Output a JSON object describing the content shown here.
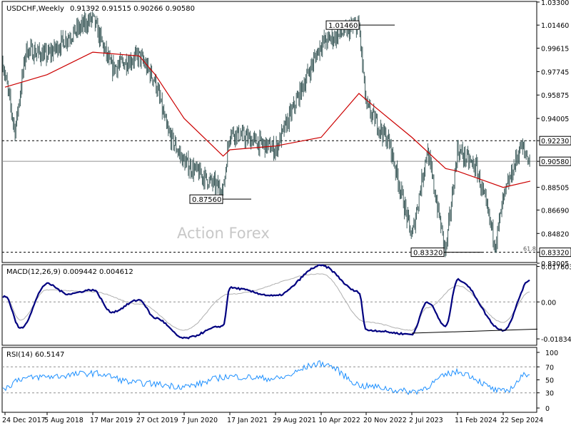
{
  "chart_data": [
    {
      "type": "candlestick",
      "panel": "price",
      "symbol_label": "USDCHF,Weekly",
      "ohlc_label": "0.91392 0.91515 0.90266 0.90580",
      "watermark": "Action Forex",
      "ylim": [
        0.825,
        1.0335
      ],
      "y_ticks": [
        "1.03300",
        "1.01460",
        "0.99615",
        "0.97745",
        "0.95875",
        "0.94005",
        "0.92230",
        "0.90580",
        "0.88505",
        "0.86690",
        "0.84820",
        "0.83320",
        "0.83005"
      ],
      "annotations": [
        {
          "label": "1.01460",
          "value": 1.0146
        },
        {
          "label": "0.87560",
          "value": 0.8756
        },
        {
          "label": "0.83320",
          "value": 0.8332
        }
      ],
      "horizontal_lines": [
        {
          "value": 0.9223,
          "label": "0.92230",
          "style": "dashed"
        },
        {
          "value": 0.9058,
          "label": "0.90580",
          "style": "solid"
        },
        {
          "value": 0.8332,
          "label": "0.83320",
          "style": "dashed"
        }
      ],
      "fib_label": "61.8",
      "close_path": [
        {
          "x": "24 Dec 2017",
          "y": 0.975
        },
        {
          "x": "Feb 2018",
          "y": 0.93
        },
        {
          "x": "Apr 2018",
          "y": 0.995
        },
        {
          "x": "5 Aug 2018",
          "y": 0.99
        },
        {
          "x": "Nov 2018",
          "y": 1.005
        },
        {
          "x": "17 Mar 2019",
          "y": 1.02
        },
        {
          "x": "Jun 2019",
          "y": 0.98
        },
        {
          "x": "27 Oct 2019",
          "y": 0.99
        },
        {
          "x": "Jan 2020",
          "y": 0.97
        },
        {
          "x": "Mar 2020",
          "y": 0.93
        },
        {
          "x": "7 Jun 2020",
          "y": 0.905
        },
        {
          "x": "Dec 2020",
          "y": 0.882
        },
        {
          "x": "17 Jan 2021",
          "y": 0.93
        },
        {
          "x": "29 Aug 2021",
          "y": 0.915
        },
        {
          "x": "10 Apr 2022",
          "y": 1.0
        },
        {
          "x": "Oct 2022",
          "y": 1.0146
        },
        {
          "x": "20 Nov 2022",
          "y": 0.95
        },
        {
          "x": "Mar 2023",
          "y": 0.92
        },
        {
          "x": "2 Jul 2023",
          "y": 0.845
        },
        {
          "x": "Sep 2023",
          "y": 0.915
        },
        {
          "x": "Dec 2023",
          "y": 0.8332
        },
        {
          "x": "11 Feb 2024",
          "y": 0.915
        },
        {
          "x": "May 2024",
          "y": 0.9
        },
        {
          "x": "Aug 2024",
          "y": 0.84
        },
        {
          "x": "22 Sep 2024",
          "y": 0.875
        },
        {
          "x": "Nov 2024",
          "y": 0.918
        },
        {
          "x": "Dec 2024",
          "y": 0.9058
        }
      ],
      "ma_path": [
        {
          "x": "24 Dec 2017",
          "y": 0.965
        },
        {
          "x": "5 Aug 2018",
          "y": 0.975
        },
        {
          "x": "17 Mar 2019",
          "y": 0.993
        },
        {
          "x": "27 Oct 2019",
          "y": 0.99
        },
        {
          "x": "Jan 2020",
          "y": 0.975
        },
        {
          "x": "7 Jun 2020",
          "y": 0.94
        },
        {
          "x": "Dec 2020",
          "y": 0.91
        },
        {
          "x": "17 Jan 2021",
          "y": 0.915
        },
        {
          "x": "29 Aug 2021",
          "y": 0.918
        },
        {
          "x": "10 Apr 2022",
          "y": 0.925
        },
        {
          "x": "Oct 2022",
          "y": 0.96
        },
        {
          "x": "20 Nov 2022",
          "y": 0.955
        },
        {
          "x": "2 Jul 2023",
          "y": 0.925
        },
        {
          "x": "Dec 2023",
          "y": 0.9
        },
        {
          "x": "11 Feb 2024",
          "y": 0.898
        },
        {
          "x": "22 Sep 2024",
          "y": 0.885
        },
        {
          "x": "Dec 2024",
          "y": 0.89
        }
      ]
    },
    {
      "type": "line",
      "panel": "macd",
      "label": "MACD(12,26,9) 0.009442 0.004612",
      "ylim": [
        -0.0215,
        0.0185
      ],
      "y_ticks": [
        "0.017603",
        "0.00",
        "-0.01834"
      ],
      "series": [
        {
          "name": "MACD",
          "points": [
            {
              "x": "24 Dec 2017",
              "y": 0.003
            },
            {
              "x": "Mar 2018",
              "y": -0.013
            },
            {
              "x": "5 Aug 2018",
              "y": 0.009
            },
            {
              "x": "Nov 2018",
              "y": 0.004
            },
            {
              "x": "17 Mar 2019",
              "y": 0.006
            },
            {
              "x": "Jun 2019",
              "y": -0.005
            },
            {
              "x": "27 Oct 2019",
              "y": 0.001
            },
            {
              "x": "Jan 2020",
              "y": -0.008
            },
            {
              "x": "7 Jun 2020",
              "y": -0.018
            },
            {
              "x": "Dec 2020",
              "y": -0.012
            },
            {
              "x": "17 Jan 2021",
              "y": 0.007
            },
            {
              "x": "29 Aug 2021",
              "y": 0.003
            },
            {
              "x": "10 Apr 2022",
              "y": 0.018
            },
            {
              "x": "Oct 2022",
              "y": 0.005
            },
            {
              "x": "20 Nov 2022",
              "y": -0.014
            },
            {
              "x": "2 Jul 2023",
              "y": -0.016
            },
            {
              "x": "Sep 2023",
              "y": 0.0
            },
            {
              "x": "Dec 2023",
              "y": -0.012
            },
            {
              "x": "11 Feb 2024",
              "y": 0.011
            },
            {
              "x": "22 Sep 2024",
              "y": -0.014
            },
            {
              "x": "Dec 2024",
              "y": 0.011
            }
          ]
        },
        {
          "name": "Signal",
          "points": [
            {
              "x": "24 Dec 2017",
              "y": 0.003
            },
            {
              "x": "Mar 2018",
              "y": -0.009
            },
            {
              "x": "5 Aug 2018",
              "y": 0.006
            },
            {
              "x": "17 Mar 2019",
              "y": 0.005
            },
            {
              "x": "27 Oct 2019",
              "y": -0.001
            },
            {
              "x": "7 Jun 2020",
              "y": -0.014
            },
            {
              "x": "17 Jan 2021",
              "y": 0.004
            },
            {
              "x": "10 Apr 2022",
              "y": 0.014
            },
            {
              "x": "20 Nov 2022",
              "y": -0.01
            },
            {
              "x": "2 Jul 2023",
              "y": -0.014
            },
            {
              "x": "Sep 2023",
              "y": -0.003
            },
            {
              "x": "11 Feb 2024",
              "y": 0.008
            },
            {
              "x": "22 Sep 2024",
              "y": -0.01
            },
            {
              "x": "Dec 2024",
              "y": 0.005
            }
          ]
        }
      ],
      "trendline": [
        {
          "x": "2 Jul 2023",
          "y": -0.0155
        },
        {
          "x": "Dec 2024",
          "y": -0.0135
        }
      ]
    },
    {
      "type": "line",
      "panel": "rsi",
      "label": "RSI(14) 60.5147",
      "ylim": [
        0,
        100
      ],
      "y_ticks": [
        "100",
        "70",
        "50",
        "30",
        "0"
      ],
      "levels": [
        70,
        30
      ],
      "series": [
        {
          "name": "RSI",
          "points": [
            {
              "x": "24 Dec 2017",
              "y": 38
            },
            {
              "x": "Mar 2018",
              "y": 52
            },
            {
              "x": "5 Aug 2018",
              "y": 55
            },
            {
              "x": "17 Mar 2019",
              "y": 60
            },
            {
              "x": "27 Oct 2019",
              "y": 45
            },
            {
              "x": "7 Jun 2020",
              "y": 40
            },
            {
              "x": "17 Jan 2021",
              "y": 55
            },
            {
              "x": "29 Aug 2021",
              "y": 52
            },
            {
              "x": "10 Apr 2022",
              "y": 75
            },
            {
              "x": "20 Nov 2022",
              "y": 40
            },
            {
              "x": "2 Jul 2023",
              "y": 32
            },
            {
              "x": "11 Feb 2024",
              "y": 62
            },
            {
              "x": "22 Sep 2024",
              "y": 32
            },
            {
              "x": "Dec 2024",
              "y": 60.5
            }
          ]
        }
      ]
    }
  ],
  "x_axis": {
    "ticks": [
      "24 Dec 2017",
      "5 Aug 2018",
      "17 Mar 2019",
      "27 Oct 2019",
      "7 Jun 2020",
      "17 Jan 2021",
      "29 Aug 2021",
      "10 Apr 2022",
      "20 Nov 2022",
      "2 Jul 2023",
      "11 Feb 2024",
      "22 Sep 2024"
    ]
  },
  "colors": {
    "candle": "#2f4f4f",
    "ma": "#cc0000",
    "macd": "#000080",
    "signal": "#b0b0b0",
    "rsi": "#1e90ff",
    "grid": "#a0a0a0",
    "watermark": "#c8c8c8"
  }
}
